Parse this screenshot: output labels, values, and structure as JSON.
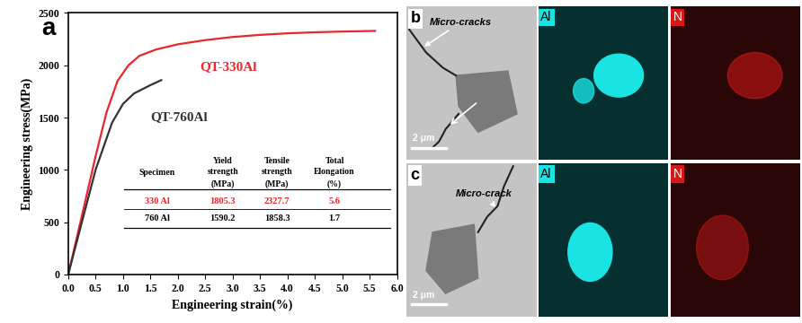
{
  "chart_data": {
    "type": "line",
    "panel_label": "a",
    "x_label": "Engineering strain(%)",
    "y_label": "Engineering stress(MPa)",
    "xlim": [
      0.0,
      6.0
    ],
    "xticks": [
      0.0,
      0.5,
      1.0,
      1.5,
      2.0,
      2.5,
      3.0,
      3.5,
      4.0,
      4.5,
      5.0,
      5.5,
      6.0
    ],
    "ylim": [
      0,
      2500
    ],
    "yticks": [
      0,
      500,
      1000,
      1500,
      2000,
      2500
    ],
    "grid": false,
    "series": [
      {
        "name": "QT-330Al",
        "color": "#e8262b",
        "x": [
          0.0,
          0.25,
          0.5,
          0.7,
          0.9,
          1.1,
          1.3,
          1.6,
          2.0,
          2.5,
          3.0,
          3.5,
          4.0,
          4.5,
          5.0,
          5.6
        ],
        "values": [
          0,
          560,
          1130,
          1550,
          1850,
          2000,
          2090,
          2150,
          2200,
          2240,
          2270,
          2290,
          2305,
          2315,
          2322,
          2328
        ]
      },
      {
        "name": "QT-760Al",
        "color": "#333333",
        "x": [
          0.0,
          0.25,
          0.5,
          0.8,
          1.0,
          1.2,
          1.5,
          1.7
        ],
        "values": [
          0,
          500,
          1000,
          1450,
          1630,
          1730,
          1810,
          1858
        ]
      }
    ],
    "table": {
      "header": [
        "Specimen",
        "Yield\nstrength\n(MPa)",
        "Tensile\nstrength\n(MPa)",
        "Total\nElongation\n(%)"
      ],
      "rows": [
        {
          "cells": [
            "330 Al",
            1805.3,
            2327.7,
            5.6
          ],
          "color": "#e8262b"
        },
        {
          "cells": [
            "760 Al",
            1590.2,
            1858.3,
            1.7
          ],
          "color": "#000000"
        }
      ]
    }
  },
  "micrographs": [
    {
      "label": "b",
      "annotation": "Micro-cracks",
      "maps": [
        "Al",
        "N"
      ],
      "colors": [
        "#19e3e3",
        "#d81818"
      ],
      "scale_bar": "2 μm"
    },
    {
      "label": "c",
      "annotation": "Micro-crack",
      "maps": [
        "Al",
        "N"
      ],
      "colors": [
        "#19e3e3",
        "#d81818"
      ],
      "scale_bar": "2 μm"
    }
  ]
}
